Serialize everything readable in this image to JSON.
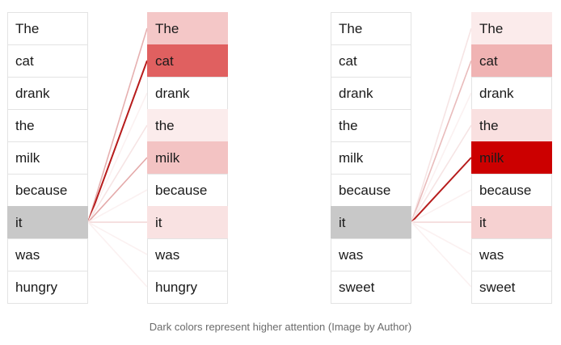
{
  "left_diagram": {
    "source_tokens": [
      "The",
      "cat",
      "drank",
      "the",
      "milk",
      "because",
      "it",
      "was",
      "hungry"
    ],
    "target_tokens": [
      "The",
      "cat",
      "drank",
      "the",
      "milk",
      "because",
      "it",
      "was",
      "hungry"
    ],
    "query_index": 6,
    "attention": [
      0.35,
      1.0,
      0.0,
      0.12,
      0.38,
      0.0,
      0.18,
      0.0,
      0.0
    ]
  },
  "right_diagram": {
    "source_tokens": [
      "The",
      "cat",
      "drank",
      "the",
      "milk",
      "because",
      "it",
      "was",
      "sweet"
    ],
    "target_tokens": [
      "The",
      "cat",
      "drank",
      "the",
      "milk",
      "because",
      "it",
      "was",
      "sweet"
    ],
    "query_index": 6,
    "attention": [
      0.08,
      0.3,
      0.0,
      0.12,
      1.0,
      0.0,
      0.18,
      0.0,
      0.0
    ]
  },
  "colors": {
    "query_highlight": "#c8c8c8",
    "attention_max_left": "#e06060",
    "attention_max_right": "#cc0000",
    "line_strong": "#b71c1c"
  },
  "caption": "Dark colors represent higher attention (Image by Author)"
}
